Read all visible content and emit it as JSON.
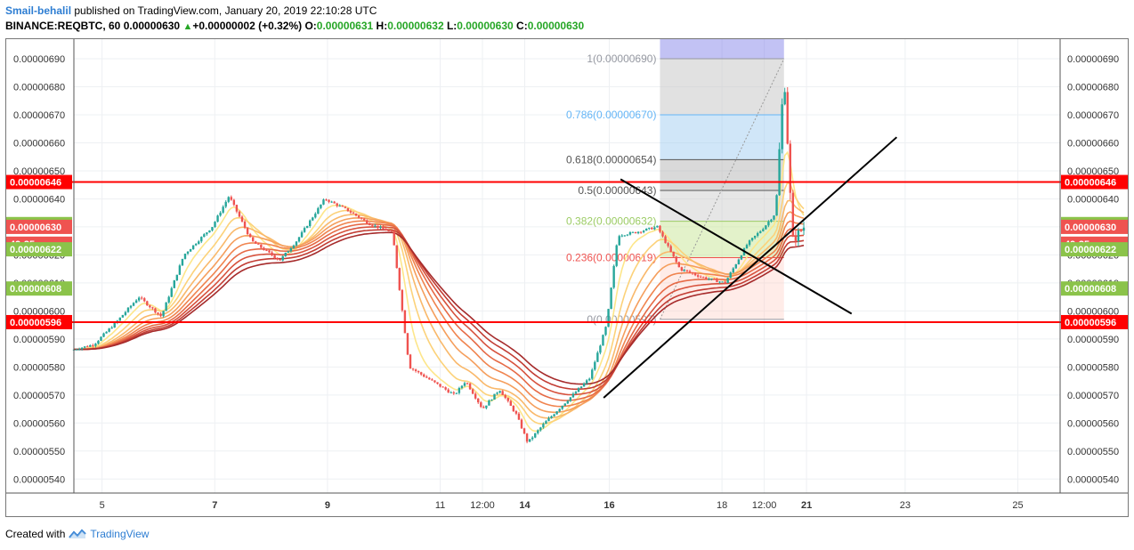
{
  "header": {
    "author": "Smail-behalil",
    "published": "published on TradingView.com, January 20, 2019 22:10:28 UTC",
    "symbol": "BINANCE:REQBTC, 60",
    "last": "0.00000630",
    "change": "+0.00000002 (+0.32%)",
    "o_label": "O:",
    "o_value": "0.00000631",
    "h_label": "H:",
    "h_value": "0.00000632",
    "l_label": "L:",
    "l_value": "0.00000630",
    "c_label": "C:",
    "c_value": "0.00000630"
  },
  "footer": {
    "created_with": "Created with",
    "brand": "TradingView"
  },
  "colors": {
    "up": "#26a69a",
    "down": "#ef5350",
    "level": "#ff0000",
    "trend": "#000000",
    "accent": "#2d7dd2"
  },
  "chart_data": {
    "type": "candlestick",
    "ylim": [
      5.35e-06,
      6.97e-06
    ],
    "y_ticks": [
      "0.00000540",
      "0.00000550",
      "0.00000560",
      "0.00000570",
      "0.00000580",
      "0.00000590",
      "0.00000600",
      "0.00000610",
      "0.00000620",
      "0.00000630",
      "0.00000640",
      "0.00000650",
      "0.00000660",
      "0.00000670",
      "0.00000680",
      "0.00000690"
    ],
    "x_ticks": [
      {
        "label": "5",
        "t": 0.5,
        "bold": false
      },
      {
        "label": "7",
        "t": 2.5,
        "bold": true
      },
      {
        "label": "9",
        "t": 4.5,
        "bold": true
      },
      {
        "label": "11",
        "t": 6.5,
        "bold": false
      },
      {
        "label": "12:00",
        "t": 7.25,
        "bold": false
      },
      {
        "label": "14",
        "t": 8.0,
        "bold": true
      },
      {
        "label": "16",
        "t": 9.5,
        "bold": true
      },
      {
        "label": "18",
        "t": 11.5,
        "bold": false
      },
      {
        "label": "12:00",
        "t": 12.25,
        "bold": false
      },
      {
        "label": "21",
        "t": 13.0,
        "bold": true
      },
      {
        "label": "23",
        "t": 14.75,
        "bold": false
      },
      {
        "label": "25",
        "t": 16.75,
        "bold": false
      }
    ],
    "horizontal_levels": [
      {
        "label": "0.00000646",
        "value": 6.46e-06
      },
      {
        "label": "0.00000596",
        "value": 5.96e-06
      }
    ],
    "price_labels": [
      {
        "label": "0.00000631",
        "value": 6.31e-06,
        "color": "#8bc34a"
      },
      {
        "label": "0.00000630",
        "value": 6.3e-06,
        "color": "#ef5350"
      },
      {
        "label": "49:35",
        "value": 6.24e-06,
        "color": "#ef5350"
      },
      {
        "label": "0.00000622",
        "value": 6.22e-06,
        "color": "#8bc34a"
      },
      {
        "label": "0.00000608",
        "value": 6.08e-06,
        "color": "#8bc34a"
      }
    ],
    "fibonacci": {
      "t_start": 10.4,
      "t_end": 12.6,
      "levels": [
        {
          "label": "1(0.00000690)",
          "value": 6.9e-06,
          "color": "#9598a1"
        },
        {
          "label": "0.786(0.00000670)",
          "value": 6.7e-06,
          "color": "#64b5f6"
        },
        {
          "label": "0.618(0.00000654)",
          "value": 6.54e-06,
          "color": "#555555"
        },
        {
          "label": "0.5(0.00000643)",
          "value": 6.43e-06,
          "color": "#555555"
        },
        {
          "label": "0.382(0.00000632)",
          "value": 6.32e-06,
          "color": "#9ccc65"
        },
        {
          "label": "0.236(0.00000619)",
          "value": 6.19e-06,
          "color": "#ef5350"
        },
        {
          "label": "0(0.00000597)",
          "value": 5.97e-06,
          "color": "#9598a1"
        }
      ]
    },
    "trendlines": [
      {
        "from": [
          9.4,
          5.69e-06
        ],
        "to": [
          14.6,
          6.62e-06
        ]
      },
      {
        "from": [
          9.7,
          6.47e-06
        ],
        "to": [
          13.8,
          5.99e-06
        ]
      }
    ],
    "series_path": [
      [
        0.0,
        5.86e-06
      ],
      [
        0.4,
        5.88e-06
      ],
      [
        0.8,
        5.96e-06
      ],
      [
        1.2,
        6.05e-06
      ],
      [
        1.6,
        5.98e-06
      ],
      [
        2.0,
        6.2e-06
      ],
      [
        2.5,
        6.3e-06
      ],
      [
        2.8,
        6.41e-06
      ],
      [
        3.2,
        6.25e-06
      ],
      [
        3.7,
        6.18e-06
      ],
      [
        4.0,
        6.25e-06
      ],
      [
        4.5,
        6.4e-06
      ],
      [
        4.9,
        6.36e-06
      ],
      [
        5.3,
        6.31e-06
      ],
      [
        5.7,
        6.28e-06
      ],
      [
        6.0,
        5.8e-06
      ],
      [
        6.4,
        5.75e-06
      ],
      [
        6.8,
        5.7e-06
      ],
      [
        7.0,
        5.75e-06
      ],
      [
        7.3,
        5.65e-06
      ],
      [
        7.6,
        5.72e-06
      ],
      [
        7.9,
        5.63e-06
      ],
      [
        8.1,
        5.53e-06
      ],
      [
        8.4,
        5.6e-06
      ],
      [
        8.8,
        5.68e-06
      ],
      [
        9.2,
        5.76e-06
      ],
      [
        9.5,
        5.95e-06
      ],
      [
        9.7,
        6.27e-06
      ],
      [
        10.0,
        6.28e-06
      ],
      [
        10.4,
        6.3e-06
      ],
      [
        10.8,
        6.15e-06
      ],
      [
        11.2,
        6.12e-06
      ],
      [
        11.6,
        6.1e-06
      ],
      [
        12.0,
        6.24e-06
      ],
      [
        12.3,
        6.3e-06
      ],
      [
        12.5,
        6.35e-06
      ],
      [
        12.65,
        6.85e-06
      ],
      [
        12.8,
        6.25e-06
      ],
      [
        13.0,
        6.3e-06
      ]
    ]
  }
}
